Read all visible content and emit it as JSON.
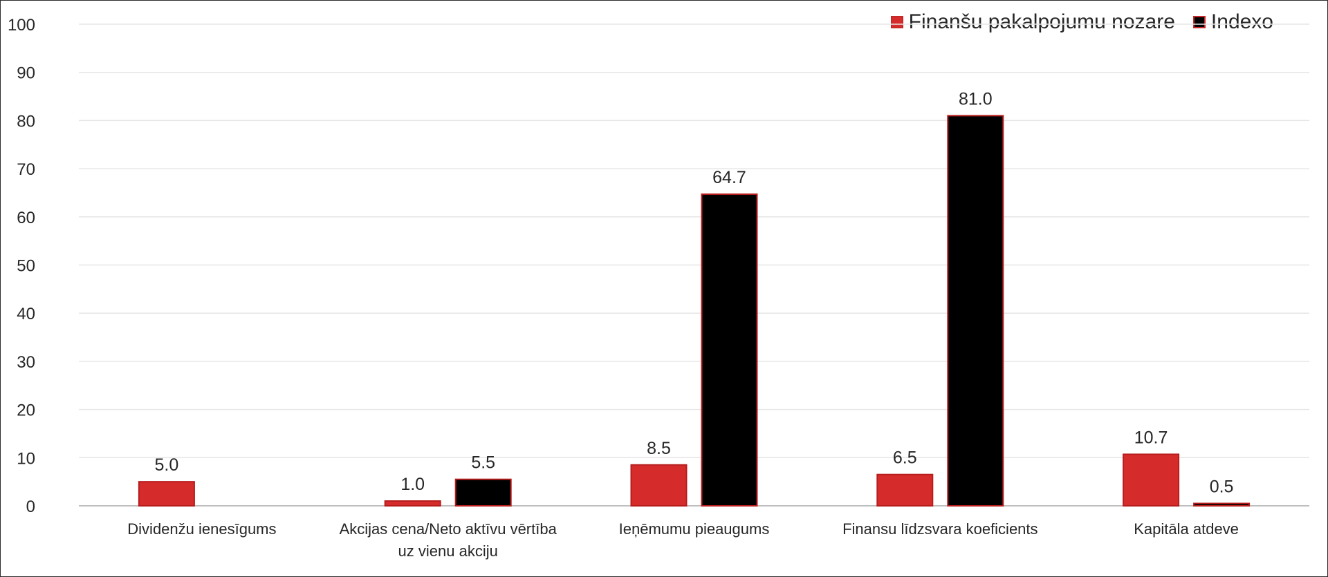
{
  "chart_data": {
    "type": "bar",
    "categories": [
      "Dividenžu ienesīgums",
      "Akcijas cena/Neto aktīvu vērtība uz vienu akciju",
      "Ieņēmumu pieaugums",
      "Finansu līdzsvara koeficients",
      "Kapitāla atdeve"
    ],
    "category_lines": [
      [
        "Dividenžu ienesīgums"
      ],
      [
        "Akcijas cena/Neto aktīvu vērtība",
        "uz vienu akciju"
      ],
      [
        "Ieņēmumu pieaugums"
      ],
      [
        "Finansu līdzsvara koeficients"
      ],
      [
        "Kapitāla atdeve"
      ]
    ],
    "series": [
      {
        "name": "Finanšu pakalpojumu nozare",
        "values": [
          5.0,
          1.0,
          8.5,
          6.5,
          10.7
        ],
        "labels": [
          "5.0",
          "1.0",
          "8.5",
          "6.5",
          "10.7"
        ],
        "color": "#d62b2b"
      },
      {
        "name": "Indexo",
        "values": [
          null,
          5.5,
          64.7,
          81.0,
          0.5
        ],
        "labels": [
          "",
          "5.5",
          "64.7",
          "81.0",
          "0.5"
        ],
        "color": "#000000"
      }
    ],
    "ylim": [
      0,
      100
    ],
    "yticks": [
      0,
      10,
      20,
      30,
      40,
      50,
      60,
      70,
      80,
      90,
      100
    ],
    "grid": true,
    "legend_position": "top-right",
    "title": "",
    "xlabel": "",
    "ylabel": ""
  },
  "legend": {
    "series_a": "Finanšu pakalpojumu nozare",
    "series_b": "Indexo"
  },
  "colors": {
    "red_series": "#d62b2b",
    "red_outline": "#b71c1c",
    "black_series": "#000000",
    "grid": "#e6e6e6",
    "axis": "#bfbfbf",
    "text": "#262626"
  }
}
